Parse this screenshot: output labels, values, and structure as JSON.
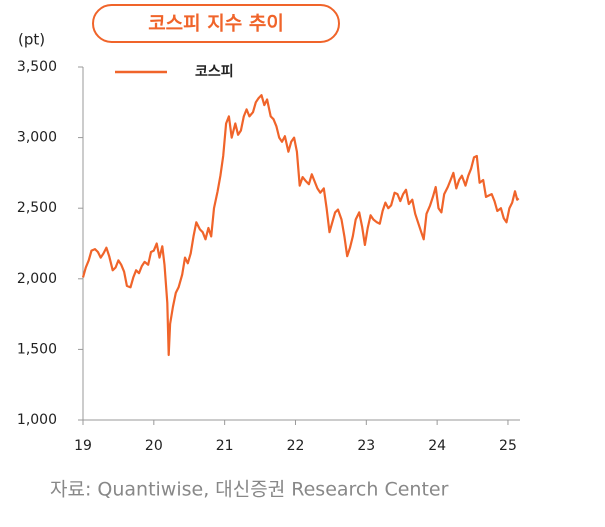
{
  "chart_data": {
    "type": "line",
    "title": "코스피 지수 추이",
    "y_label": "(pt)",
    "source": "자료: Quantiwise, 대신증권 Research Center",
    "xlim": [
      2019,
      2025.17
    ],
    "xticks": [
      {
        "value": 2019,
        "label": "19"
      },
      {
        "value": 2020,
        "label": "20"
      },
      {
        "value": 2021,
        "label": "21"
      },
      {
        "value": 2022,
        "label": "22"
      },
      {
        "value": 2023,
        "label": "23"
      },
      {
        "value": 2024,
        "label": "24"
      },
      {
        "value": 2025,
        "label": "25"
      }
    ],
    "ylim": [
      1000,
      3500
    ],
    "yticks": [
      {
        "value": 1000,
        "label": "1,000"
      },
      {
        "value": 1500,
        "label": "1,500"
      },
      {
        "value": 2000,
        "label": "2,000"
      },
      {
        "value": 2500,
        "label": "2,500"
      },
      {
        "value": 3000,
        "label": "3,000"
      },
      {
        "value": 3500,
        "label": "3,500"
      }
    ],
    "grid": false,
    "legend": "top-left",
    "x": [
      2019.0,
      2019.04,
      2019.08,
      2019.12,
      2019.17,
      2019.21,
      2019.25,
      2019.29,
      2019.33,
      2019.37,
      2019.42,
      2019.46,
      2019.5,
      2019.54,
      2019.58,
      2019.62,
      2019.67,
      2019.71,
      2019.75,
      2019.79,
      2019.83,
      2019.87,
      2019.92,
      2019.96,
      2020.0,
      2020.04,
      2020.08,
      2020.12,
      2020.15,
      2020.19,
      2020.21,
      2020.23,
      2020.27,
      2020.31,
      2020.35,
      2020.4,
      2020.44,
      2020.48,
      2020.52,
      2020.56,
      2020.6,
      2020.65,
      2020.69,
      2020.73,
      2020.77,
      2020.81,
      2020.85,
      2020.9,
      2020.94,
      2020.98,
      2021.02,
      2021.06,
      2021.1,
      2021.15,
      2021.19,
      2021.23,
      2021.27,
      2021.31,
      2021.35,
      2021.4,
      2021.44,
      2021.48,
      2021.52,
      2021.56,
      2021.6,
      2021.65,
      2021.69,
      2021.73,
      2021.77,
      2021.81,
      2021.85,
      2021.9,
      2021.94,
      2021.98,
      2022.02,
      2022.06,
      2022.1,
      2022.15,
      2022.19,
      2022.23,
      2022.27,
      2022.31,
      2022.35,
      2022.4,
      2022.44,
      2022.48,
      2022.52,
      2022.56,
      2022.6,
      2022.65,
      2022.69,
      2022.73,
      2022.77,
      2022.81,
      2022.85,
      2022.9,
      2022.94,
      2022.98,
      2023.02,
      2023.06,
      2023.1,
      2023.15,
      2023.19,
      2023.23,
      2023.27,
      2023.31,
      2023.35,
      2023.4,
      2023.44,
      2023.48,
      2023.52,
      2023.56,
      2023.6,
      2023.65,
      2023.69,
      2023.73,
      2023.77,
      2023.81,
      2023.85,
      2023.9,
      2023.94,
      2023.98,
      2024.02,
      2024.06,
      2024.1,
      2024.15,
      2024.19,
      2024.23,
      2024.27,
      2024.31,
      2024.35,
      2024.4,
      2024.44,
      2024.48,
      2024.52,
      2024.56,
      2024.6,
      2024.65,
      2024.69,
      2024.73,
      2024.77,
      2024.81,
      2024.85,
      2024.9,
      2024.94,
      2024.98,
      2025.02,
      2025.06,
      2025.1,
      2025.13,
      2025.15
    ],
    "series": [
      {
        "name": "코스피",
        "color": "#f0642a",
        "values": [
          2010,
          2080,
          2130,
          2200,
          2210,
          2190,
          2150,
          2180,
          2220,
          2160,
          2060,
          2080,
          2130,
          2100,
          2050,
          1950,
          1940,
          2010,
          2060,
          2040,
          2090,
          2120,
          2100,
          2190,
          2200,
          2250,
          2150,
          2230,
          2100,
          1830,
          1460,
          1680,
          1800,
          1900,
          1940,
          2030,
          2150,
          2110,
          2180,
          2300,
          2400,
          2350,
          2330,
          2280,
          2360,
          2300,
          2500,
          2620,
          2730,
          2870,
          3100,
          3150,
          3000,
          3100,
          3020,
          3050,
          3150,
          3200,
          3150,
          3180,
          3250,
          3280,
          3300,
          3230,
          3270,
          3150,
          3130,
          3080,
          3000,
          2970,
          3010,
          2900,
          2970,
          3000,
          2900,
          2660,
          2720,
          2690,
          2670,
          2740,
          2690,
          2640,
          2610,
          2640,
          2500,
          2330,
          2400,
          2470,
          2490,
          2420,
          2300,
          2160,
          2220,
          2300,
          2420,
          2470,
          2370,
          2240,
          2360,
          2450,
          2420,
          2400,
          2390,
          2480,
          2540,
          2500,
          2520,
          2610,
          2600,
          2550,
          2600,
          2630,
          2530,
          2560,
          2460,
          2400,
          2340,
          2280,
          2460,
          2520,
          2580,
          2650,
          2500,
          2470,
          2600,
          2650,
          2700,
          2750,
          2640,
          2700,
          2730,
          2660,
          2730,
          2780,
          2860,
          2870,
          2680,
          2700,
          2580,
          2590,
          2600,
          2550,
          2480,
          2500,
          2430,
          2400,
          2500,
          2540,
          2620,
          2560,
          2570
        ]
      }
    ]
  }
}
